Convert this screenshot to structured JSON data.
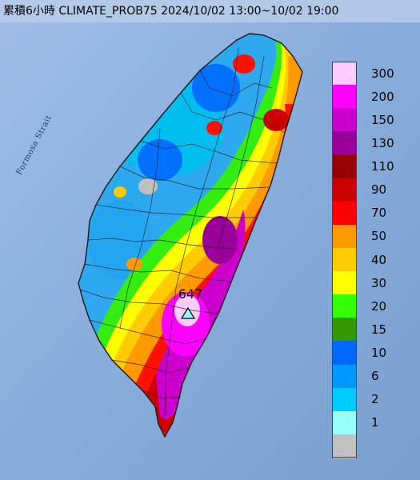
{
  "title": "累積6小時 CLIMATE_PROB75 2024/10/02 13:00~10/02 19:00",
  "map": {
    "sea_label": "Formosa Strait",
    "max_value_label": "647",
    "max_marker_icon": "triangle-marker-icon"
  },
  "legend": {
    "items": [
      {
        "label": "300",
        "color": "#ffccff"
      },
      {
        "label": "200",
        "color": "#ff00ff"
      },
      {
        "label": "150",
        "color": "#cc00cc"
      },
      {
        "label": "130",
        "color": "#990099"
      },
      {
        "label": "110",
        "color": "#990000"
      },
      {
        "label": "90",
        "color": "#cc0000"
      },
      {
        "label": "70",
        "color": "#ff0000"
      },
      {
        "label": "50",
        "color": "#ff9900"
      },
      {
        "label": "40",
        "color": "#ffcc00"
      },
      {
        "label": "30",
        "color": "#ffff00"
      },
      {
        "label": "20",
        "color": "#33ff00"
      },
      {
        "label": "15",
        "color": "#339900"
      },
      {
        "label": "10",
        "color": "#0066ff"
      },
      {
        "label": "6",
        "color": "#0099ff"
      },
      {
        "label": "2",
        "color": "#00ccff"
      },
      {
        "label": "1",
        "color": "#99ffff"
      },
      {
        "label": "",
        "color": "#c0c0c0"
      }
    ]
  },
  "colors": {
    "sea": "#7fa6d8",
    "marker_fill": "#9fffff",
    "boundary": "#1a1a1a"
  }
}
